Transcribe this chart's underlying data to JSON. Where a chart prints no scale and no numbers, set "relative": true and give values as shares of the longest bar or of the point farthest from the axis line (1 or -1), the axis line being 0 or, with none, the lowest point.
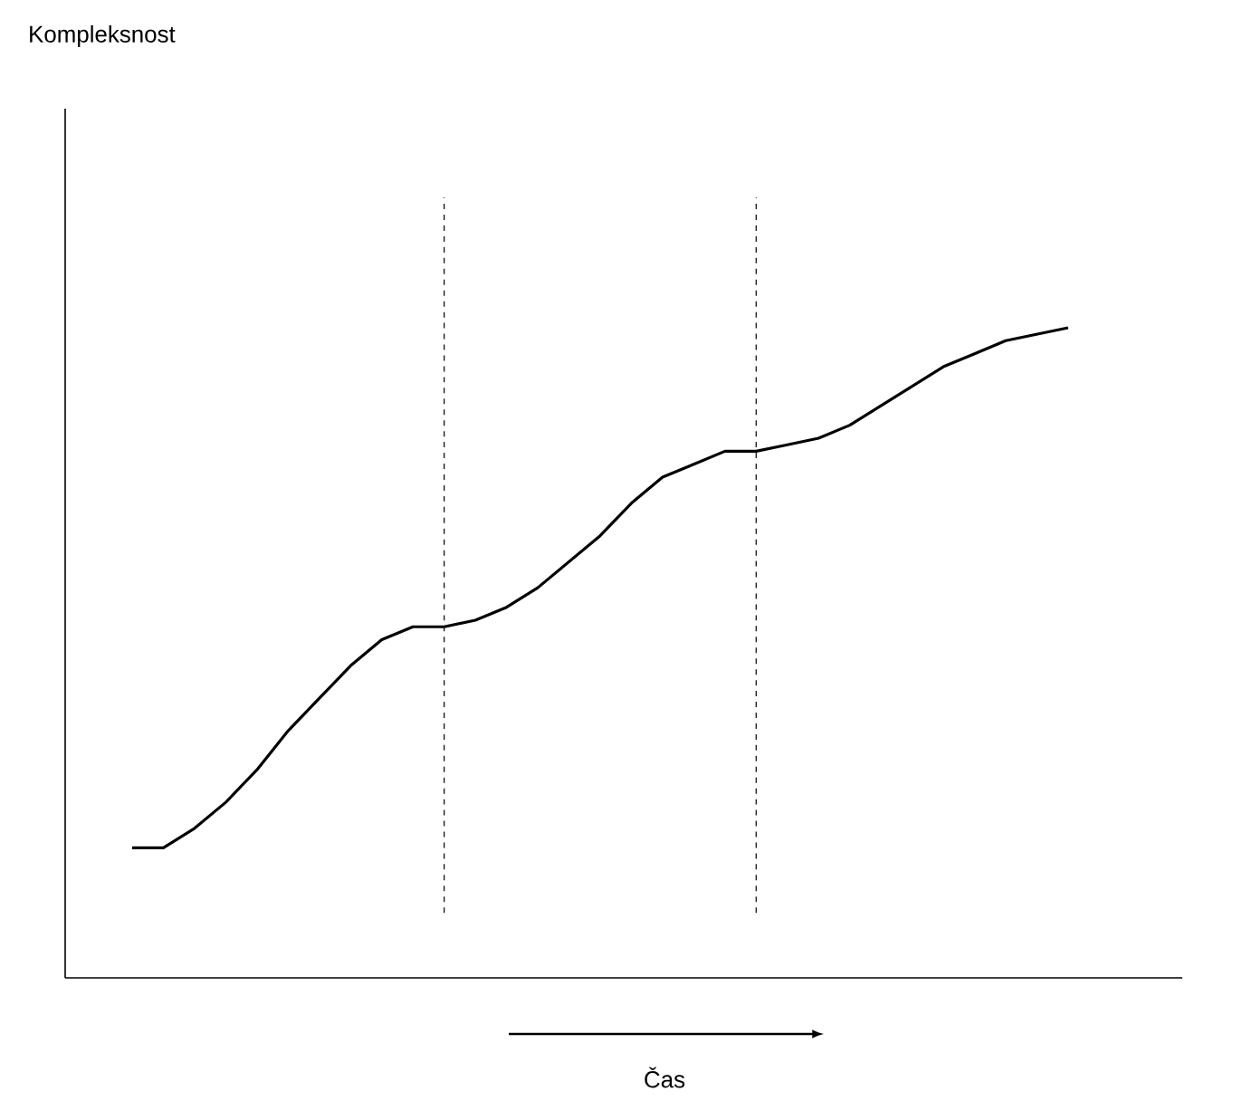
{
  "chart_data": {
    "type": "line",
    "relative": true,
    "annotations": [
      "Kompleksnost"
    ],
    "xlabel": "Čas",
    "color": "#000000",
    "line_style": "solid",
    "marker": "none",
    "tick_labels": false,
    "categories": [
      null,
      null,
      null,
      null,
      null,
      null,
      null,
      null,
      null,
      null,
      null,
      null,
      null,
      null,
      null,
      null,
      null,
      null,
      null,
      null,
      null,
      null,
      null,
      null,
      null,
      null,
      null,
      null,
      null,
      null,
      null
    ],
    "values": [
      0.2,
      0.2,
      0.23,
      0.27,
      0.32,
      0.38,
      0.43,
      0.48,
      0.52,
      0.54,
      0.54,
      0.55,
      0.57,
      0.6,
      0.64,
      0.68,
      0.73,
      0.77,
      0.79,
      0.81,
      0.81,
      0.82,
      0.83,
      0.85,
      0.88,
      0.91,
      0.94,
      0.96,
      0.98,
      0.99,
      1
    ]
  }
}
